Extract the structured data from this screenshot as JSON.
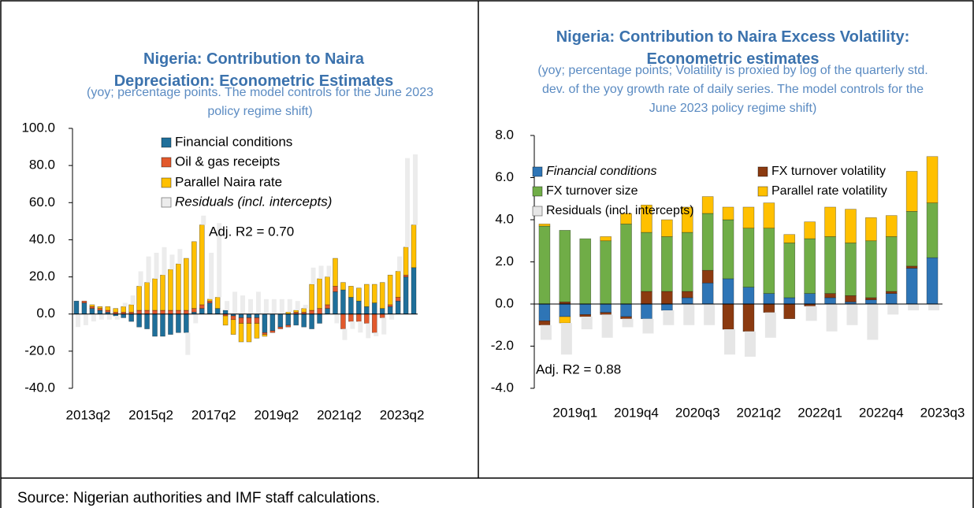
{
  "chart_data": [
    {
      "type": "bar",
      "stacked": true,
      "title": "Nigeria: Contribution to Naira Depreciation: Econometric Estimates",
      "subtitle": "(yoy; percentage points. The model controls for the June 2023 policy regime shift)",
      "annotation": "Adj. R2 =  0.70",
      "categories": [
        "2013q2",
        null,
        null,
        null,
        null,
        null,
        null,
        null,
        "2015q2",
        null,
        null,
        null,
        null,
        null,
        null,
        null,
        "2017q2",
        null,
        null,
        null,
        null,
        null,
        null,
        null,
        "2019q2",
        null,
        null,
        null,
        null,
        null,
        null,
        null,
        "2021q2",
        null,
        null,
        null,
        null,
        null,
        null,
        null,
        "2023q2",
        null,
        null,
        null
      ],
      "ylim": [
        -40,
        100
      ],
      "yticks": [
        {
          "value": -40,
          "label": "-40.0"
        },
        {
          "value": -20,
          "label": "-20.0"
        },
        {
          "value": 0,
          "label": "0.0"
        },
        {
          "value": 20,
          "label": "20.0"
        },
        {
          "value": 40,
          "label": "40.0"
        },
        {
          "value": 60,
          "label": "60.0"
        },
        {
          "value": 80,
          "label": "80.0"
        },
        {
          "value": 100,
          "label": "100.0"
        }
      ],
      "series": [
        {
          "name": "Financial conditions",
          "color": "#1f6f9a",
          "values": [
            7,
            6,
            3,
            2,
            1,
            -1,
            -2,
            -4,
            -7,
            -8,
            -12,
            -12,
            -11,
            -10,
            -10,
            1,
            3,
            6,
            3,
            2,
            -1,
            -2,
            -2,
            -2,
            -10,
            -9,
            -7,
            -6,
            -6,
            -7,
            -8,
            -5,
            3,
            12,
            13,
            9,
            7,
            4,
            6,
            3,
            4,
            7,
            20,
            25
          ]
        },
        {
          "name": "Oil & gas receipts",
          "color": "#e2592c",
          "values": [
            0,
            1,
            1,
            1,
            1,
            1,
            1,
            1,
            2,
            2,
            2,
            2,
            2,
            2,
            2,
            2,
            2,
            1,
            0,
            -1,
            -2,
            -3,
            -3,
            -3,
            -1,
            -1,
            -1,
            -1,
            1,
            1,
            2,
            3,
            2,
            3,
            -8,
            -4,
            -4,
            -5,
            -10,
            -2,
            1,
            2,
            1,
            0
          ]
        },
        {
          "name": "Parallel Naira rate",
          "color": "#ffc000",
          "values": [
            0,
            0,
            1,
            1,
            2,
            2,
            3,
            4,
            13,
            15,
            17,
            19,
            22,
            25,
            28,
            36,
            43,
            1,
            6,
            -5,
            -8,
            -10,
            -10,
            -8,
            -1,
            0,
            0,
            1,
            1,
            2,
            14,
            16,
            15,
            15,
            4,
            6,
            7,
            12,
            10,
            14,
            16,
            14,
            15,
            23
          ]
        },
        {
          "name": "Residuals (incl. intercepts)",
          "color": "#ececec",
          "values": [
            -7,
            -6,
            -4,
            -3,
            -3,
            -2,
            2,
            5,
            8,
            14,
            14,
            15,
            8,
            8,
            -12,
            -5,
            5,
            25,
            40,
            5,
            12,
            10,
            8,
            12,
            8,
            8,
            8,
            7,
            5,
            2,
            9,
            7,
            6,
            -5,
            -6,
            -4,
            -6,
            -8,
            -2,
            -9,
            -3,
            8,
            48,
            38
          ]
        }
      ]
    },
    {
      "type": "bar",
      "stacked": true,
      "title": "Nigeria: Contribution to Naira Excess Volatility: Econometric estimates",
      "subtitle": "(yoy; percentage points; Volatility is proxied by log of the quarterly std. dev. of the yoy growth rate of daily series. The model controls for the June 2023 policy regime shift)",
      "annotation": "Adj. R2 =  0.88",
      "categories": [
        "2019q1",
        null,
        null,
        "2019q4",
        null,
        null,
        "2020q3",
        null,
        null,
        "2021q2",
        null,
        null,
        "2022q1",
        null,
        null,
        "2022q4",
        null,
        null,
        "2023q3",
        null
      ],
      "ylim": [
        -4,
        8
      ],
      "yticks": [
        {
          "value": -4,
          "label": "-4.0"
        },
        {
          "value": -2,
          "label": "-2.0"
        },
        {
          "value": 0,
          "label": "0.0"
        },
        {
          "value": 2,
          "label": "2.0"
        },
        {
          "value": 4,
          "label": "4.0"
        },
        {
          "value": 6,
          "label": "6.0"
        },
        {
          "value": 8,
          "label": "8.0"
        }
      ],
      "series": [
        {
          "name": "Financial conditions",
          "color": "#2e75b6",
          "values": [
            -0.8,
            -0.6,
            -0.5,
            -0.4,
            -0.6,
            -0.7,
            -0.3,
            0.3,
            1.0,
            1.2,
            0.8,
            0.5,
            0.3,
            0.5,
            0.3,
            0.1,
            0.2,
            0.5,
            1.7,
            2.2
          ]
        },
        {
          "name": "FX turnover volatility",
          "color": "#8b3a10",
          "values": [
            -0.2,
            0.1,
            -0.1,
            -0.1,
            -0.1,
            0.6,
            0.6,
            0.3,
            0.6,
            -1.2,
            -1.3,
            -0.4,
            -0.7,
            -0.1,
            0.2,
            0.3,
            0.1,
            0.1,
            0.1,
            0
          ]
        },
        {
          "name": "FX turnover size",
          "color": "#70ad47",
          "values": [
            3.7,
            3.4,
            3.1,
            3.0,
            3.8,
            2.8,
            2.6,
            2.8,
            2.7,
            2.8,
            2.8,
            3.1,
            2.6,
            2.6,
            2.7,
            2.5,
            2.7,
            2.6,
            2.6,
            2.6
          ]
        },
        {
          "name": "Parallel rate volatility",
          "color": "#ffc000",
          "values": [
            0.1,
            -0.3,
            0,
            0.2,
            0.5,
            1.3,
            0.8,
            1.2,
            0.8,
            0.6,
            1.0,
            1.2,
            0.4,
            0.8,
            1.4,
            1.6,
            1.1,
            1.0,
            1.9,
            2.2
          ]
        },
        {
          "name": "Residuals (incl. intercepts)",
          "color": "#e6e6e6",
          "values": [
            -0.7,
            -1.5,
            -0.6,
            -1.1,
            -0.4,
            -0.7,
            -0.7,
            -1.0,
            -1.0,
            -1.2,
            -1.2,
            -1.2,
            0,
            -0.7,
            -1.3,
            -1.0,
            -1.7,
            -0.5,
            -0.3,
            -0.3
          ]
        }
      ]
    }
  ],
  "source": "Source: Nigerian authorities and IMF staff calculations."
}
